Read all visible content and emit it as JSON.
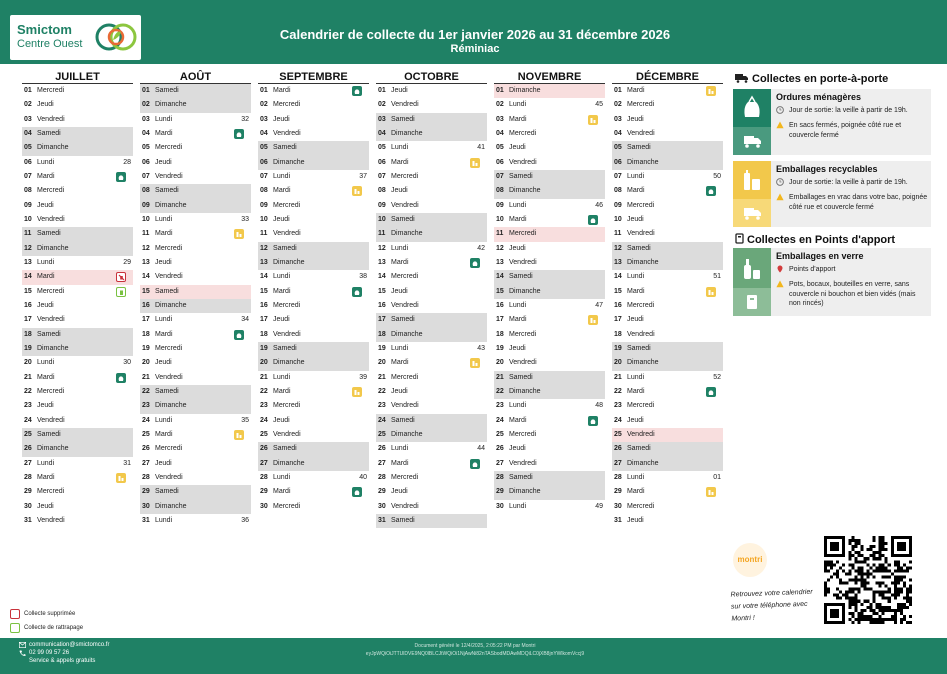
{
  "header": {
    "logo_name": "Smictom",
    "logo_sub": "Centre Ouest",
    "title": "Calendrier de collecte du 1er janvier 2026 au 31 décembre 2026",
    "subtitle": "Réminiac",
    "color": "#1f8165"
  },
  "months": [
    {
      "name": "JUILLET",
      "days": [
        {
          "d": "01",
          "w": "Mercredi"
        },
        {
          "d": "02",
          "w": "Jeudi"
        },
        {
          "d": "03",
          "w": "Vendredi"
        },
        {
          "d": "04",
          "w": "Samedi",
          "t": "we"
        },
        {
          "d": "05",
          "w": "Dimanche",
          "t": "we"
        },
        {
          "d": "06",
          "w": "Lundi",
          "wk": "28"
        },
        {
          "d": "07",
          "w": "Mardi",
          "ic": "om"
        },
        {
          "d": "08",
          "w": "Mercredi"
        },
        {
          "d": "09",
          "w": "Jeudi"
        },
        {
          "d": "10",
          "w": "Vendredi"
        },
        {
          "d": "11",
          "w": "Samedi",
          "t": "we"
        },
        {
          "d": "12",
          "w": "Dimanche",
          "t": "we"
        },
        {
          "d": "13",
          "w": "Lundi",
          "wk": "29"
        },
        {
          "d": "14",
          "w": "Mardi",
          "t": "hol",
          "ic": "red"
        },
        {
          "d": "15",
          "w": "Mercredi",
          "ic": "grn"
        },
        {
          "d": "16",
          "w": "Jeudi"
        },
        {
          "d": "17",
          "w": "Vendredi"
        },
        {
          "d": "18",
          "w": "Samedi",
          "t": "we"
        },
        {
          "d": "19",
          "w": "Dimanche",
          "t": "we"
        },
        {
          "d": "20",
          "w": "Lundi",
          "wk": "30"
        },
        {
          "d": "21",
          "w": "Mardi",
          "ic": "om"
        },
        {
          "d": "22",
          "w": "Mercredi"
        },
        {
          "d": "23",
          "w": "Jeudi"
        },
        {
          "d": "24",
          "w": "Vendredi"
        },
        {
          "d": "25",
          "w": "Samedi",
          "t": "we"
        },
        {
          "d": "26",
          "w": "Dimanche",
          "t": "we"
        },
        {
          "d": "27",
          "w": "Lundi",
          "wk": "31"
        },
        {
          "d": "28",
          "w": "Mardi",
          "ic": "er"
        },
        {
          "d": "29",
          "w": "Mercredi"
        },
        {
          "d": "30",
          "w": "Jeudi"
        },
        {
          "d": "31",
          "w": "Vendredi"
        }
      ]
    },
    {
      "name": "AOÛT",
      "days": [
        {
          "d": "01",
          "w": "Samedi",
          "t": "we"
        },
        {
          "d": "02",
          "w": "Dimanche",
          "t": "we"
        },
        {
          "d": "03",
          "w": "Lundi",
          "wk": "32"
        },
        {
          "d": "04",
          "w": "Mardi",
          "ic": "om"
        },
        {
          "d": "05",
          "w": "Mercredi"
        },
        {
          "d": "06",
          "w": "Jeudi"
        },
        {
          "d": "07",
          "w": "Vendredi"
        },
        {
          "d": "08",
          "w": "Samedi",
          "t": "we"
        },
        {
          "d": "09",
          "w": "Dimanche",
          "t": "we"
        },
        {
          "d": "10",
          "w": "Lundi",
          "wk": "33"
        },
        {
          "d": "11",
          "w": "Mardi",
          "ic": "er"
        },
        {
          "d": "12",
          "w": "Mercredi"
        },
        {
          "d": "13",
          "w": "Jeudi"
        },
        {
          "d": "14",
          "w": "Vendredi"
        },
        {
          "d": "15",
          "w": "Samedi",
          "t": "hol"
        },
        {
          "d": "16",
          "w": "Dimanche",
          "t": "we"
        },
        {
          "d": "17",
          "w": "Lundi",
          "wk": "34"
        },
        {
          "d": "18",
          "w": "Mardi",
          "ic": "om"
        },
        {
          "d": "19",
          "w": "Mercredi"
        },
        {
          "d": "20",
          "w": "Jeudi"
        },
        {
          "d": "21",
          "w": "Vendredi"
        },
        {
          "d": "22",
          "w": "Samedi",
          "t": "we"
        },
        {
          "d": "23",
          "w": "Dimanche",
          "t": "we"
        },
        {
          "d": "24",
          "w": "Lundi",
          "wk": "35"
        },
        {
          "d": "25",
          "w": "Mardi",
          "ic": "er"
        },
        {
          "d": "26",
          "w": "Mercredi"
        },
        {
          "d": "27",
          "w": "Jeudi"
        },
        {
          "d": "28",
          "w": "Vendredi"
        },
        {
          "d": "29",
          "w": "Samedi",
          "t": "we"
        },
        {
          "d": "30",
          "w": "Dimanche",
          "t": "we"
        },
        {
          "d": "31",
          "w": "Lundi",
          "wk": "36"
        }
      ]
    },
    {
      "name": "SEPTEMBRE",
      "days": [
        {
          "d": "01",
          "w": "Mardi",
          "ic": "om"
        },
        {
          "d": "02",
          "w": "Mercredi"
        },
        {
          "d": "03",
          "w": "Jeudi"
        },
        {
          "d": "04",
          "w": "Vendredi"
        },
        {
          "d": "05",
          "w": "Samedi",
          "t": "we"
        },
        {
          "d": "06",
          "w": "Dimanche",
          "t": "we"
        },
        {
          "d": "07",
          "w": "Lundi",
          "wk": "37"
        },
        {
          "d": "08",
          "w": "Mardi",
          "ic": "er"
        },
        {
          "d": "09",
          "w": "Mercredi"
        },
        {
          "d": "10",
          "w": "Jeudi"
        },
        {
          "d": "11",
          "w": "Vendredi"
        },
        {
          "d": "12",
          "w": "Samedi",
          "t": "we"
        },
        {
          "d": "13",
          "w": "Dimanche",
          "t": "we"
        },
        {
          "d": "14",
          "w": "Lundi",
          "wk": "38"
        },
        {
          "d": "15",
          "w": "Mardi",
          "ic": "om"
        },
        {
          "d": "16",
          "w": "Mercredi"
        },
        {
          "d": "17",
          "w": "Jeudi"
        },
        {
          "d": "18",
          "w": "Vendredi"
        },
        {
          "d": "19",
          "w": "Samedi",
          "t": "we"
        },
        {
          "d": "20",
          "w": "Dimanche",
          "t": "we"
        },
        {
          "d": "21",
          "w": "Lundi",
          "wk": "39"
        },
        {
          "d": "22",
          "w": "Mardi",
          "ic": "er"
        },
        {
          "d": "23",
          "w": "Mercredi"
        },
        {
          "d": "24",
          "w": "Jeudi"
        },
        {
          "d": "25",
          "w": "Vendredi"
        },
        {
          "d": "26",
          "w": "Samedi",
          "t": "we"
        },
        {
          "d": "27",
          "w": "Dimanche",
          "t": "we"
        },
        {
          "d": "28",
          "w": "Lundi",
          "wk": "40"
        },
        {
          "d": "29",
          "w": "Mardi",
          "ic": "om"
        },
        {
          "d": "30",
          "w": "Mercredi"
        }
      ]
    },
    {
      "name": "OCTOBRE",
      "days": [
        {
          "d": "01",
          "w": "Jeudi"
        },
        {
          "d": "02",
          "w": "Vendredi"
        },
        {
          "d": "03",
          "w": "Samedi",
          "t": "we"
        },
        {
          "d": "04",
          "w": "Dimanche",
          "t": "we"
        },
        {
          "d": "05",
          "w": "Lundi",
          "wk": "41"
        },
        {
          "d": "06",
          "w": "Mardi",
          "ic": "er"
        },
        {
          "d": "07",
          "w": "Mercredi"
        },
        {
          "d": "08",
          "w": "Jeudi"
        },
        {
          "d": "09",
          "w": "Vendredi"
        },
        {
          "d": "10",
          "w": "Samedi",
          "t": "we"
        },
        {
          "d": "11",
          "w": "Dimanche",
          "t": "we"
        },
        {
          "d": "12",
          "w": "Lundi",
          "wk": "42"
        },
        {
          "d": "13",
          "w": "Mardi",
          "ic": "om"
        },
        {
          "d": "14",
          "w": "Mercredi"
        },
        {
          "d": "15",
          "w": "Jeudi"
        },
        {
          "d": "16",
          "w": "Vendredi"
        },
        {
          "d": "17",
          "w": "Samedi",
          "t": "we"
        },
        {
          "d": "18",
          "w": "Dimanche",
          "t": "we"
        },
        {
          "d": "19",
          "w": "Lundi",
          "wk": "43"
        },
        {
          "d": "20",
          "w": "Mardi",
          "ic": "er"
        },
        {
          "d": "21",
          "w": "Mercredi"
        },
        {
          "d": "22",
          "w": "Jeudi"
        },
        {
          "d": "23",
          "w": "Vendredi"
        },
        {
          "d": "24",
          "w": "Samedi",
          "t": "we"
        },
        {
          "d": "25",
          "w": "Dimanche",
          "t": "we"
        },
        {
          "d": "26",
          "w": "Lundi",
          "wk": "44"
        },
        {
          "d": "27",
          "w": "Mardi",
          "ic": "om"
        },
        {
          "d": "28",
          "w": "Mercredi"
        },
        {
          "d": "29",
          "w": "Jeudi"
        },
        {
          "d": "30",
          "w": "Vendredi"
        },
        {
          "d": "31",
          "w": "Samedi",
          "t": "we"
        }
      ]
    },
    {
      "name": "NOVEMBRE",
      "days": [
        {
          "d": "01",
          "w": "Dimanche",
          "t": "hol"
        },
        {
          "d": "02",
          "w": "Lundi",
          "wk": "45"
        },
        {
          "d": "03",
          "w": "Mardi",
          "ic": "er"
        },
        {
          "d": "04",
          "w": "Mercredi"
        },
        {
          "d": "05",
          "w": "Jeudi"
        },
        {
          "d": "06",
          "w": "Vendredi"
        },
        {
          "d": "07",
          "w": "Samedi",
          "t": "we"
        },
        {
          "d": "08",
          "w": "Dimanche",
          "t": "we"
        },
        {
          "d": "09",
          "w": "Lundi",
          "wk": "46"
        },
        {
          "d": "10",
          "w": "Mardi",
          "ic": "om"
        },
        {
          "d": "11",
          "w": "Mercredi",
          "t": "hol"
        },
        {
          "d": "12",
          "w": "Jeudi"
        },
        {
          "d": "13",
          "w": "Vendredi"
        },
        {
          "d": "14",
          "w": "Samedi",
          "t": "we"
        },
        {
          "d": "15",
          "w": "Dimanche",
          "t": "we"
        },
        {
          "d": "16",
          "w": "Lundi",
          "wk": "47"
        },
        {
          "d": "17",
          "w": "Mardi",
          "ic": "er"
        },
        {
          "d": "18",
          "w": "Mercredi"
        },
        {
          "d": "19",
          "w": "Jeudi"
        },
        {
          "d": "20",
          "w": "Vendredi"
        },
        {
          "d": "21",
          "w": "Samedi",
          "t": "we"
        },
        {
          "d": "22",
          "w": "Dimanche",
          "t": "we"
        },
        {
          "d": "23",
          "w": "Lundi",
          "wk": "48"
        },
        {
          "d": "24",
          "w": "Mardi",
          "ic": "om"
        },
        {
          "d": "25",
          "w": "Mercredi"
        },
        {
          "d": "26",
          "w": "Jeudi"
        },
        {
          "d": "27",
          "w": "Vendredi"
        },
        {
          "d": "28",
          "w": "Samedi",
          "t": "we"
        },
        {
          "d": "29",
          "w": "Dimanche",
          "t": "we"
        },
        {
          "d": "30",
          "w": "Lundi",
          "wk": "49"
        }
      ]
    },
    {
      "name": "DÉCEMBRE",
      "days": [
        {
          "d": "01",
          "w": "Mardi",
          "ic": "er"
        },
        {
          "d": "02",
          "w": "Mercredi"
        },
        {
          "d": "03",
          "w": "Jeudi"
        },
        {
          "d": "04",
          "w": "Vendredi"
        },
        {
          "d": "05",
          "w": "Samedi",
          "t": "we"
        },
        {
          "d": "06",
          "w": "Dimanche",
          "t": "we"
        },
        {
          "d": "07",
          "w": "Lundi",
          "wk": "50"
        },
        {
          "d": "08",
          "w": "Mardi",
          "ic": "om"
        },
        {
          "d": "09",
          "w": "Mercredi"
        },
        {
          "d": "10",
          "w": "Jeudi"
        },
        {
          "d": "11",
          "w": "Vendredi"
        },
        {
          "d": "12",
          "w": "Samedi",
          "t": "we"
        },
        {
          "d": "13",
          "w": "Dimanche",
          "t": "we"
        },
        {
          "d": "14",
          "w": "Lundi",
          "wk": "51"
        },
        {
          "d": "15",
          "w": "Mardi",
          "ic": "er"
        },
        {
          "d": "16",
          "w": "Mercredi"
        },
        {
          "d": "17",
          "w": "Jeudi"
        },
        {
          "d": "18",
          "w": "Vendredi"
        },
        {
          "d": "19",
          "w": "Samedi",
          "t": "we"
        },
        {
          "d": "20",
          "w": "Dimanche",
          "t": "we"
        },
        {
          "d": "21",
          "w": "Lundi",
          "wk": "52"
        },
        {
          "d": "22",
          "w": "Mardi",
          "ic": "om"
        },
        {
          "d": "23",
          "w": "Mercredi"
        },
        {
          "d": "24",
          "w": "Jeudi"
        },
        {
          "d": "25",
          "w": "Vendredi",
          "t": "hol"
        },
        {
          "d": "26",
          "w": "Samedi",
          "t": "we"
        },
        {
          "d": "27",
          "w": "Dimanche",
          "t": "we"
        },
        {
          "d": "28",
          "w": "Lundi",
          "wk": "01"
        },
        {
          "d": "29",
          "w": "Mardi",
          "ic": "er"
        },
        {
          "d": "30",
          "w": "Mercredi"
        },
        {
          "d": "31",
          "w": "Jeudi"
        }
      ]
    }
  ],
  "legend": {
    "porte_title": "Collectes en porte-à-porte",
    "om": {
      "title": "Ordures ménagères",
      "line1": "Jour de sortie: la veille à partir de 19h.",
      "line2": "En sacs fermés, poignée côté rue et couvercle fermé",
      "color": "#1f8165"
    },
    "er": {
      "title": "Emballages recyclables",
      "line1": "Jour de sortie: la veille à partir de 19h.",
      "line2": "Emballages en vrac dans votre bac, poignée côté rue et couvercle fermé",
      "color": "#f2c84b"
    },
    "apport_title": "Collectes en Points d'apport",
    "verre": {
      "title": "Emballages en verre",
      "line1": "Points d'apport",
      "line2": "Pots, bocaux, bouteilles en verre, sans couvercle ni bouchon et bien vidés (mais non rincés)",
      "color": "#6aa77a"
    },
    "supprimee": "Collecte supprimée",
    "rattrapage": "Collecte de rattrapage"
  },
  "app": {
    "logo": "montri",
    "text": "Retrouvez votre calendrier sur votre téléphone avec Montri !"
  },
  "footer": {
    "email": "communication@smictomco.fr",
    "phone": "02 99 09 57 26",
    "service": "Service & appels gratuits",
    "generated": "Document généré le 12/4/2025, 2:05:22 PM par Montri",
    "hash": "eyJpWQiOiJTTUlDVE9NQ0lBLCJtWQiOi1NjAwNi82nTASbodMDAwMDQiLC0jXB8jnYWlkomVccj9"
  }
}
